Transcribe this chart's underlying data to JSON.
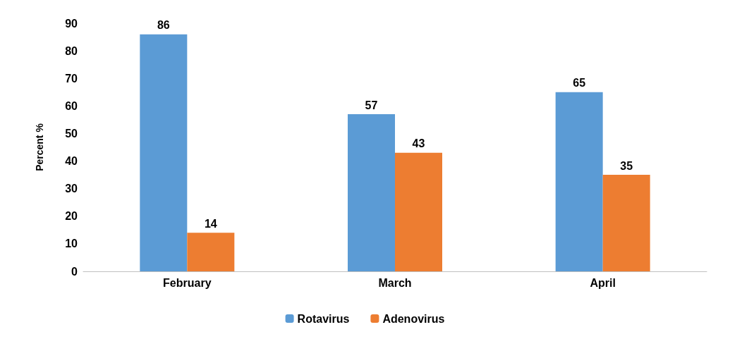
{
  "chart_data": {
    "type": "bar",
    "ylabel": "Percent %",
    "categories": [
      "February",
      "March",
      "April"
    ],
    "series": [
      {
        "name": "Rotavirus",
        "color": "#5b9bd5",
        "values": [
          86,
          57,
          65
        ]
      },
      {
        "name": "Adenovirus",
        "color": "#ed7d31",
        "values": [
          14,
          43,
          35
        ]
      }
    ],
    "ylim": [
      0,
      90
    ],
    "yticks": [
      0,
      10,
      20,
      30,
      40,
      50,
      60,
      70,
      80,
      90
    ],
    "grid": false,
    "legend": "bottom",
    "data_labels": true
  }
}
